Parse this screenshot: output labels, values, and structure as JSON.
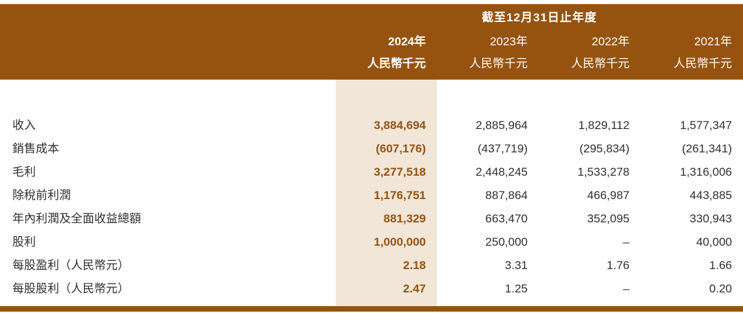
{
  "colors": {
    "brand": "#96530f",
    "highlight": "#f1e6d8",
    "body_text": "#2f2f2f"
  },
  "header": {
    "period_title": "截至12月31日止年度",
    "columns": [
      {
        "year": "2024年",
        "unit": "人民幣千元",
        "current": true
      },
      {
        "year": "2023年",
        "unit": "人民幣千元",
        "current": false
      },
      {
        "year": "2022年",
        "unit": "人民幣千元",
        "current": false
      },
      {
        "year": "2021年",
        "unit": "人民幣千元",
        "current": false
      }
    ]
  },
  "rows": [
    {
      "label": "收入",
      "values": [
        "3,884,694",
        "2,885,964",
        "1,829,112",
        "1,577,347"
      ]
    },
    {
      "label": "銷售成本",
      "values": [
        "(607,176)",
        "(437,719)",
        "(295,834)",
        "(261,341)"
      ]
    },
    {
      "label": "毛利",
      "values": [
        "3,277,518",
        "2,448,245",
        "1,533,278",
        "1,316,006"
      ]
    },
    {
      "label": "除稅前利潤",
      "values": [
        "1,176,751",
        "887,864",
        "466,987",
        "443,885"
      ]
    },
    {
      "label": "年內利潤及全面收益總額",
      "values": [
        "881,329",
        "663,470",
        "352,095",
        "330,943"
      ]
    },
    {
      "label": "股利",
      "values": [
        "1,000,000",
        "250,000",
        "–",
        "40,000"
      ]
    },
    {
      "label": "每股盈利（人民幣元）",
      "values": [
        "2.18",
        "3.31",
        "1.76",
        "1.66"
      ]
    },
    {
      "label": "每股股利（人民幣元）",
      "values": [
        "2.47",
        "1.25",
        "–",
        "0.20"
      ]
    }
  ]
}
